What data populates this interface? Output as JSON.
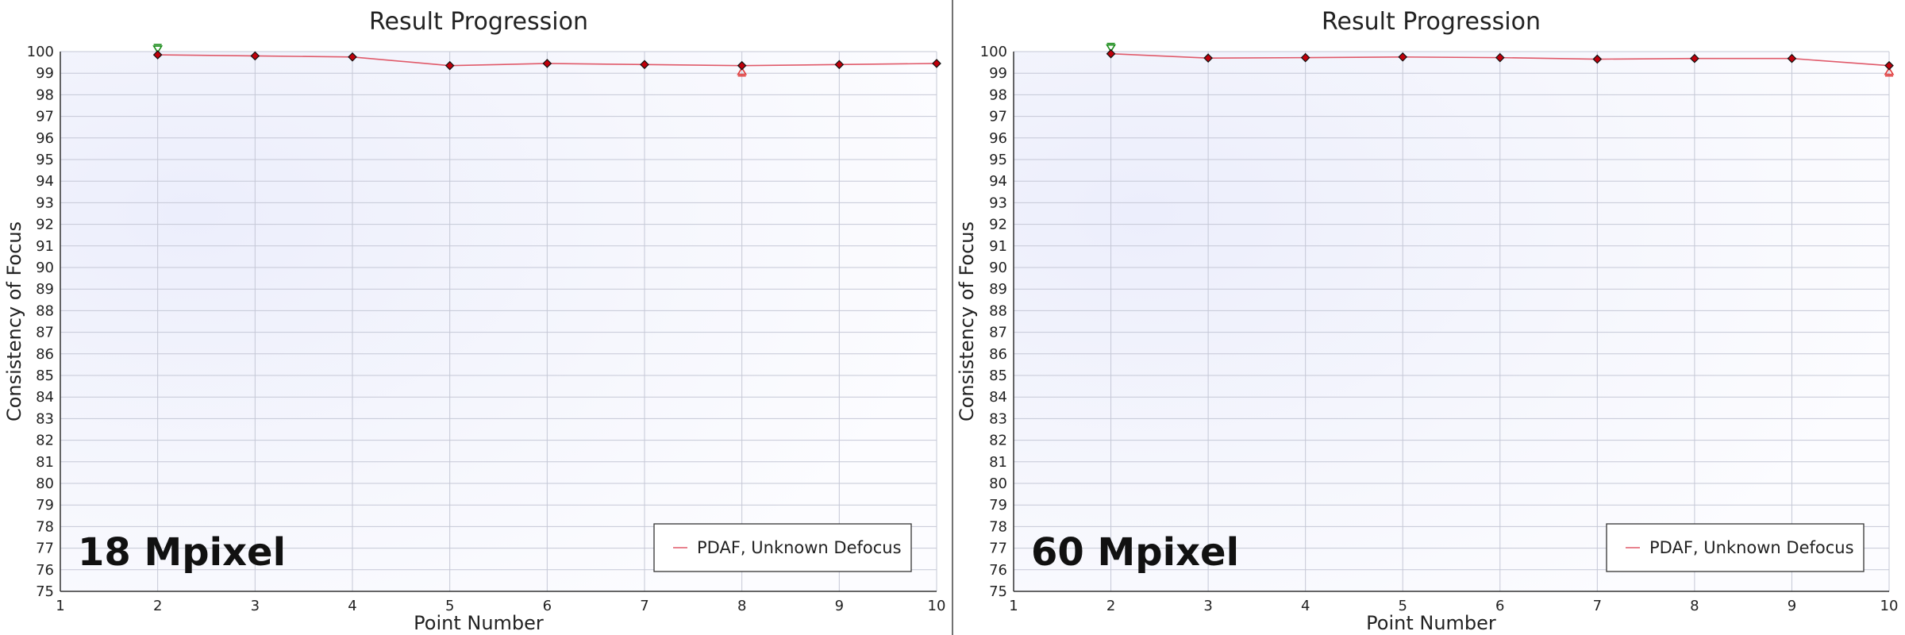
{
  "colors": {
    "series_line": "#e05a6a",
    "marker": "#c0000b",
    "max_marker": "#1a8c1a",
    "min_marker": "#e03a3a",
    "grid": "#c5c8d6",
    "panel_divider": "#444444"
  },
  "chart_data": [
    {
      "type": "line",
      "title": "Result Progression",
      "xlabel": "Point Number",
      "ylabel": "Consistency of Focus",
      "annotation": "18 Mpixel",
      "xlim": [
        1,
        10
      ],
      "ylim": [
        75,
        100
      ],
      "xticks": [
        1,
        2,
        3,
        4,
        5,
        6,
        7,
        8,
        9,
        10
      ],
      "yticks": [
        75,
        76,
        77,
        78,
        79,
        80,
        81,
        82,
        83,
        84,
        85,
        86,
        87,
        88,
        89,
        90,
        91,
        92,
        93,
        94,
        95,
        96,
        97,
        98,
        99,
        100
      ],
      "grid": true,
      "legend_position": "bottom-right",
      "series": [
        {
          "name": "PDAF, Unknown Defocus",
          "x": [
            2,
            3,
            4,
            5,
            6,
            7,
            8,
            9,
            10
          ],
          "y": [
            99.85,
            99.8,
            99.75,
            99.35,
            99.45,
            99.4,
            99.35,
            99.4,
            99.45
          ],
          "max_marker_x": 2,
          "min_marker_x": 8
        }
      ]
    },
    {
      "type": "line",
      "title": "Result Progression",
      "xlabel": "Point Number",
      "ylabel": "Consistency of Focus",
      "annotation": "60 Mpixel",
      "xlim": [
        1,
        10
      ],
      "ylim": [
        75,
        100
      ],
      "xticks": [
        1,
        2,
        3,
        4,
        5,
        6,
        7,
        8,
        9,
        10
      ],
      "yticks": [
        75,
        76,
        77,
        78,
        79,
        80,
        81,
        82,
        83,
        84,
        85,
        86,
        87,
        88,
        89,
        90,
        91,
        92,
        93,
        94,
        95,
        96,
        97,
        98,
        99,
        100
      ],
      "grid": true,
      "legend_position": "bottom-right",
      "series": [
        {
          "name": "PDAF, Unknown Defocus",
          "x": [
            2,
            3,
            4,
            5,
            6,
            7,
            8,
            9,
            10
          ],
          "y": [
            99.9,
            99.7,
            99.72,
            99.75,
            99.72,
            99.65,
            99.68,
            99.68,
            99.35
          ],
          "max_marker_x": 2,
          "min_marker_x": 10
        }
      ]
    }
  ]
}
